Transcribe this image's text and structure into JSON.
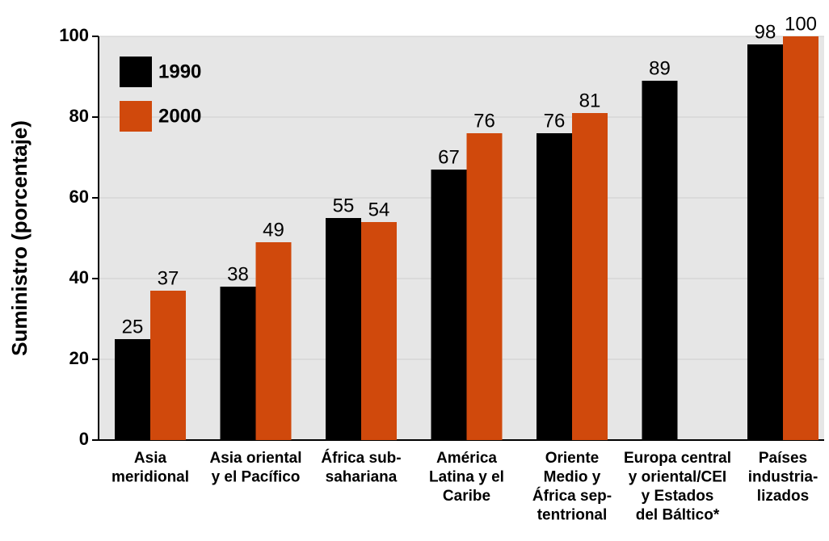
{
  "chart_data": {
    "type": "bar",
    "y_label": "Suministro (porcentaje)",
    "categories": [
      [
        "Asia",
        "meridional"
      ],
      [
        "Asia oriental",
        "y el Pacífico"
      ],
      [
        "África sub-",
        "sahariana"
      ],
      [
        "América",
        "Latina y el",
        "Caribe"
      ],
      [
        "Oriente",
        "Medio y",
        "África sep-",
        "tentrional"
      ],
      [
        "Europa central",
        "y oriental/CEI",
        "y Estados",
        "del Báltico*"
      ],
      [
        "Países",
        "industria-",
        "lizados"
      ]
    ],
    "series": [
      {
        "name": "1990",
        "color": "#000000",
        "values": [
          25,
          38,
          55,
          67,
          76,
          89,
          98
        ]
      },
      {
        "name": "2000",
        "color": "#d0490c",
        "values": [
          37,
          49,
          54,
          76,
          81,
          null,
          100
        ]
      }
    ],
    "ylim": [
      0,
      100
    ],
    "yticks": [
      0,
      20,
      40,
      60,
      80,
      100
    ],
    "grid": true,
    "legend": "upper left"
  }
}
